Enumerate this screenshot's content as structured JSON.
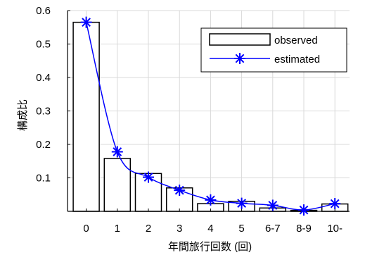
{
  "chart_data": {
    "type": "bar",
    "title": "",
    "xlabel": "年間旅行回数 (回)",
    "ylabel": "構成比",
    "categories": [
      "0",
      "1",
      "2",
      "3",
      "4",
      "5",
      "6-7",
      "8-9",
      "10-"
    ],
    "ylim": [
      0,
      0.6
    ],
    "yticks": [
      "0.1",
      "0.2",
      "0.3",
      "0.4",
      "0.5",
      "0.6"
    ],
    "grid": true,
    "legend_position": "top-right",
    "series": [
      {
        "name": "observed",
        "kind": "bar",
        "values": [
          0.565,
          0.158,
          0.113,
          0.07,
          0.023,
          0.03,
          0.01,
          0.003,
          0.022
        ]
      },
      {
        "name": "estimated",
        "kind": "line",
        "marker": "asterisk",
        "color": "#0000ff",
        "values": [
          0.565,
          0.178,
          0.102,
          0.063,
          0.034,
          0.024,
          0.018,
          0.004,
          0.023
        ]
      }
    ]
  }
}
